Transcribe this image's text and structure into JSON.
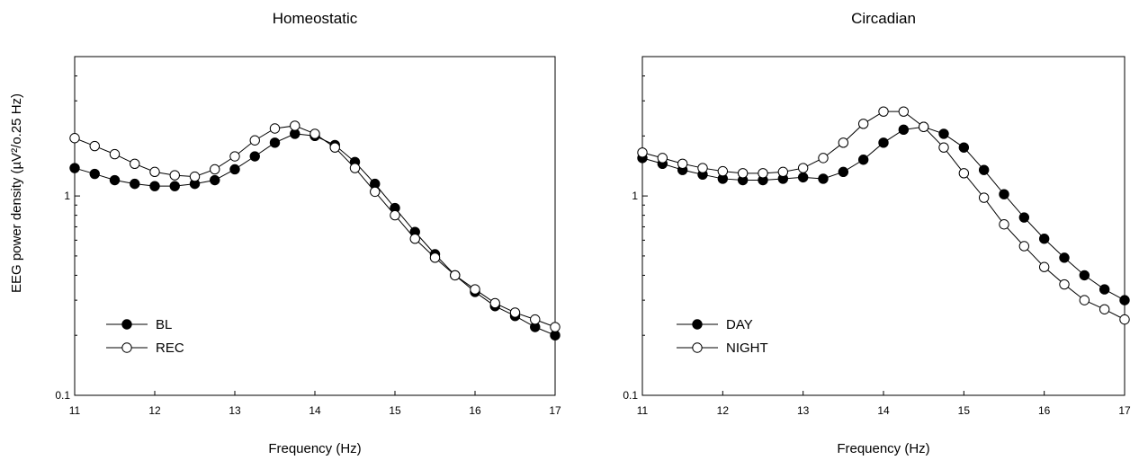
{
  "ylabel": "EEG power density (µV²/o.25 Hz)",
  "chart_data": [
    {
      "type": "line",
      "title": "Homeostatic",
      "xlabel": "Frequency (Hz)",
      "xlim": [
        11,
        17
      ],
      "ylim": [
        0.1,
        5
      ],
      "yscale": "log",
      "xticks": [
        "11",
        "12",
        "13",
        "14",
        "15",
        "16",
        "17"
      ],
      "yticks": [
        "0.1",
        "1"
      ],
      "legend_position": "bottom-left",
      "x": [
        11,
        11.25,
        11.5,
        11.75,
        12,
        12.25,
        12.5,
        12.75,
        13,
        13.25,
        13.5,
        13.75,
        14,
        14.25,
        14.5,
        14.75,
        15,
        15.25,
        15.5,
        15.75,
        16,
        16.25,
        16.5,
        16.75,
        17
      ],
      "series": [
        {
          "name": "BL",
          "marker": "filled",
          "values": [
            1.38,
            1.29,
            1.2,
            1.15,
            1.12,
            1.12,
            1.15,
            1.2,
            1.36,
            1.58,
            1.85,
            2.05,
            2.0,
            1.8,
            1.48,
            1.15,
            0.87,
            0.66,
            0.51,
            0.4,
            0.33,
            0.28,
            0.25,
            0.22,
            0.2
          ]
        },
        {
          "name": "REC",
          "marker": "open",
          "values": [
            1.95,
            1.78,
            1.62,
            1.45,
            1.32,
            1.27,
            1.25,
            1.36,
            1.58,
            1.9,
            2.18,
            2.25,
            2.05,
            1.75,
            1.38,
            1.05,
            0.8,
            0.61,
            0.49,
            0.4,
            0.34,
            0.29,
            0.26,
            0.24,
            0.22
          ]
        }
      ]
    },
    {
      "type": "line",
      "title": "Circadian",
      "xlabel": "Frequency (Hz)",
      "xlim": [
        11,
        17
      ],
      "ylim": [
        0.1,
        5
      ],
      "yscale": "log",
      "xticks": [
        "11",
        "12",
        "13",
        "14",
        "15",
        "16",
        "17"
      ],
      "yticks": [
        "0.1",
        "1"
      ],
      "legend_position": "bottom-left",
      "x": [
        11,
        11.25,
        11.5,
        11.75,
        12,
        12.25,
        12.5,
        12.75,
        13,
        13.25,
        13.5,
        13.75,
        14,
        14.25,
        14.5,
        14.75,
        15,
        15.25,
        15.5,
        15.75,
        16,
        16.25,
        16.5,
        16.75,
        17
      ],
      "series": [
        {
          "name": "DAY",
          "marker": "filled",
          "values": [
            1.55,
            1.45,
            1.35,
            1.28,
            1.22,
            1.2,
            1.2,
            1.22,
            1.24,
            1.22,
            1.32,
            1.52,
            1.85,
            2.15,
            2.22,
            2.05,
            1.75,
            1.35,
            1.02,
            0.78,
            0.61,
            0.49,
            0.4,
            0.34,
            0.3
          ]
        },
        {
          "name": "NIGHT",
          "marker": "open",
          "values": [
            1.65,
            1.55,
            1.45,
            1.38,
            1.33,
            1.3,
            1.3,
            1.32,
            1.38,
            1.55,
            1.85,
            2.3,
            2.65,
            2.65,
            2.22,
            1.75,
            1.3,
            0.98,
            0.72,
            0.56,
            0.44,
            0.36,
            0.3,
            0.27,
            0.24
          ]
        }
      ]
    }
  ]
}
